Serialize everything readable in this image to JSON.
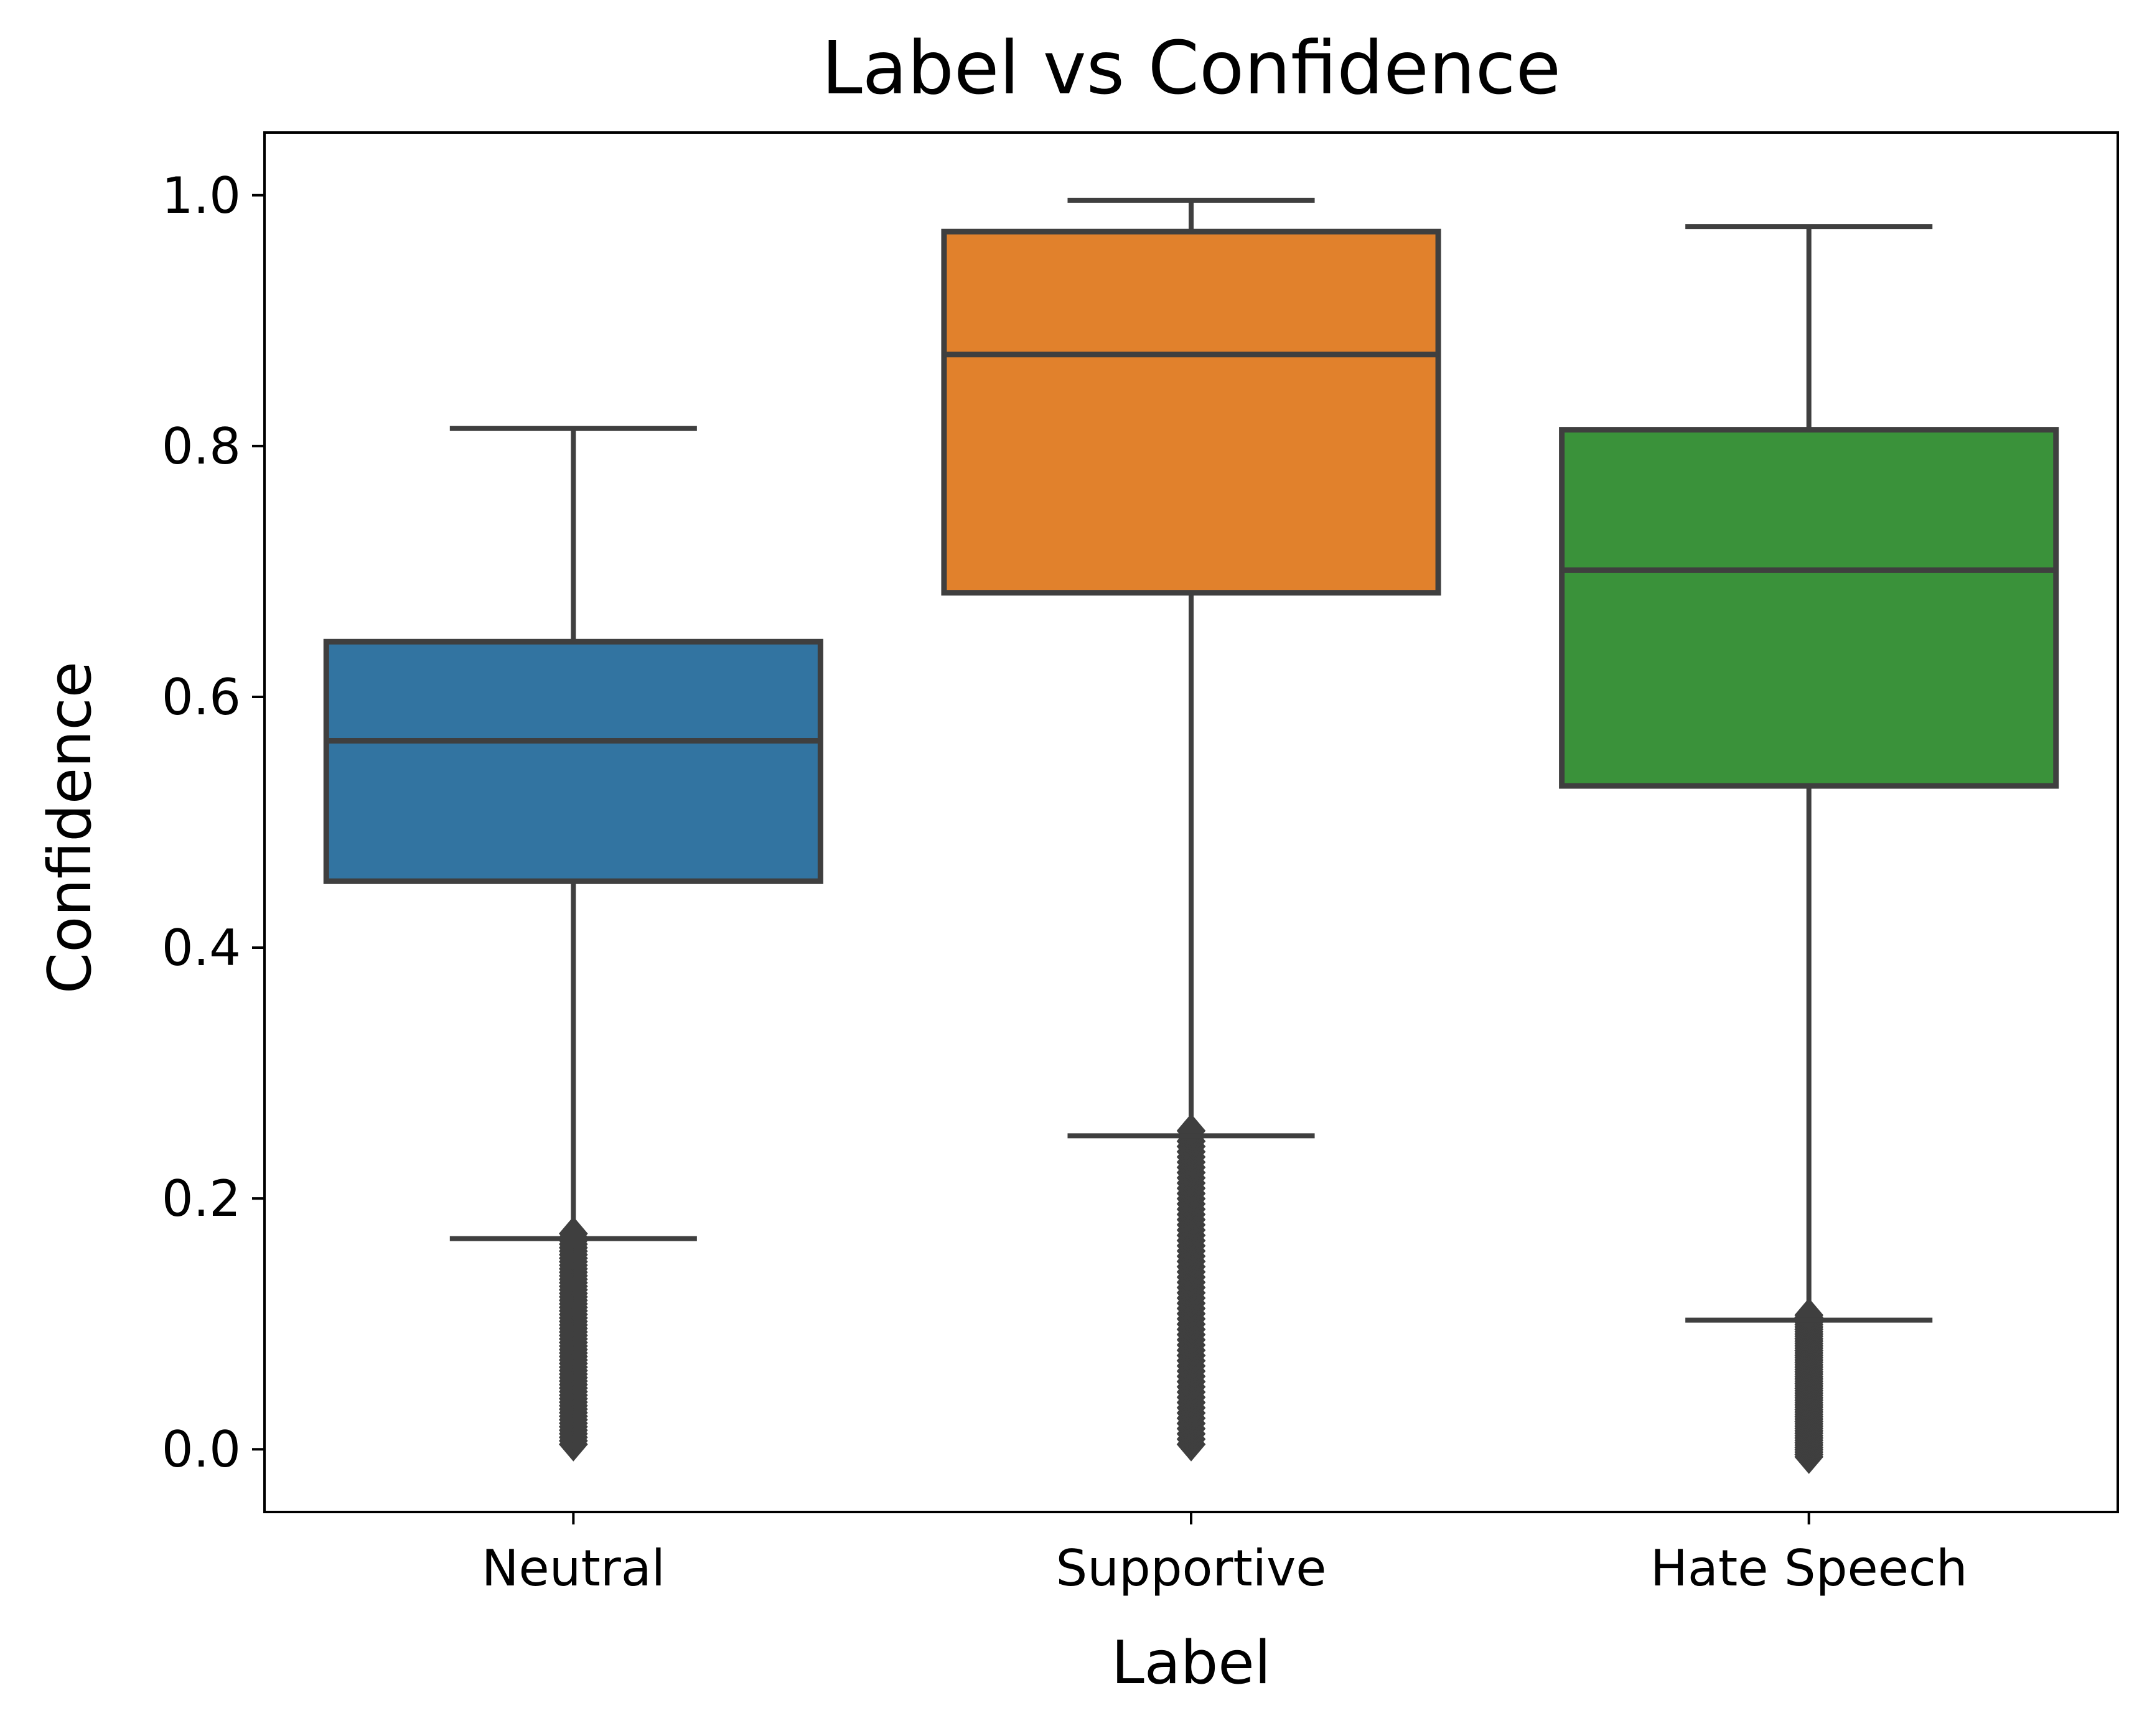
{
  "chart_data": {
    "type": "box",
    "title": "Label vs Confidence",
    "xlabel": "Label",
    "ylabel": "Confidence",
    "ylim": [
      -0.05,
      1.05
    ],
    "yticks": [
      0.0,
      0.2,
      0.4,
      0.6,
      0.8,
      1.0
    ],
    "ytick_labels": [
      "0.0",
      "0.2",
      "0.4",
      "0.6",
      "0.8",
      "1.0"
    ],
    "categories": [
      "Neutral",
      "Supportive",
      "Hate Speech"
    ],
    "boxes": [
      {
        "category": "Neutral",
        "whisker_low": 0.168,
        "q1": 0.453,
        "median": 0.565,
        "q3": 0.644,
        "whisker_high": 0.814,
        "outlier_range": [
          0.0,
          0.168
        ],
        "color": "#3274a1"
      },
      {
        "category": "Supportive",
        "whisker_low": 0.25,
        "q1": 0.683,
        "median": 0.873,
        "q3": 0.971,
        "whisker_high": 0.996,
        "outlier_range": [
          0.0,
          0.25
        ],
        "color": "#e1812c"
      },
      {
        "category": "Hate Speech",
        "whisker_low": 0.103,
        "q1": 0.529,
        "median": 0.701,
        "q3": 0.813,
        "whisker_high": 0.975,
        "outlier_range": [
          -0.01,
          0.103
        ],
        "color": "#3a923a"
      }
    ],
    "edge_color": "#3f3f3f",
    "grid": false,
    "legend": false
  }
}
